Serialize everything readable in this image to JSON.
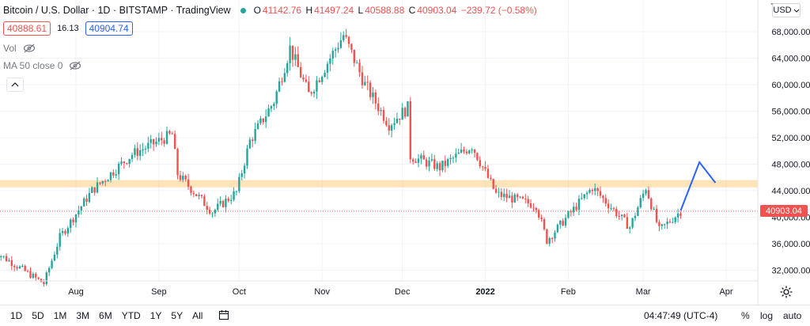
{
  "header": {
    "title": "Bitcoin / U.S. Dollar · 1D · BITSTAMP · TradingView",
    "ohlc": [
      {
        "key": "O",
        "value": "41142.76"
      },
      {
        "key": "H",
        "value": "41497.24"
      },
      {
        "key": "L",
        "value": "40588.88"
      },
      {
        "key": "C",
        "value": "40903.04"
      }
    ],
    "change": "−239.72 (−0.58%)",
    "sell_price": "40888.61",
    "spread": "16.13",
    "buy_price": "40904.74",
    "indicators": [
      "Vol",
      "MA 50 close 0"
    ]
  },
  "currency": "USD",
  "last_price_label": "40903.04",
  "axis_top_partial": "7",
  "toolbar": {
    "ranges": [
      "1D",
      "5D",
      "1M",
      "3M",
      "6M",
      "YTD",
      "1Y",
      "5Y",
      "All"
    ],
    "time": "04:47:49 (UTC-4)",
    "percent": "%",
    "log": "log",
    "auto": "auto"
  },
  "colors": {
    "up": "#26a69a",
    "down": "#ef5350",
    "zone": "#ffcc80",
    "projection": "#2962ff"
  },
  "chart_data": {
    "type": "candlestick",
    "title": "Bitcoin / U.S. Dollar · 1D · BITSTAMP",
    "x_labels": [
      "Aug",
      "Sep",
      "Oct",
      "Nov",
      "Dec",
      "2022",
      "Feb",
      "Mar",
      "Apr"
    ],
    "y_ticks": [
      32000,
      36000,
      40000,
      44000,
      48000,
      52000,
      56000,
      60000,
      64000,
      68000
    ],
    "ylim": [
      30500,
      71200
    ],
    "resistance_zone": [
      44500,
      45600
    ],
    "last_price": 40903.04,
    "projection": [
      {
        "date": "2022-03-15",
        "price": 41000
      },
      {
        "date": "2022-03-22",
        "price": 48300
      },
      {
        "date": "2022-03-28",
        "price": 45200
      }
    ],
    "series_close_path": [
      {
        "date": "2021-07-01",
        "close": 35000
      },
      {
        "date": "2021-07-20",
        "close": 30000
      },
      {
        "date": "2021-07-26",
        "close": 37000
      },
      {
        "date": "2021-08-07",
        "close": 44000
      },
      {
        "date": "2021-08-22",
        "close": 49500
      },
      {
        "date": "2021-09-06",
        "close": 52500
      },
      {
        "date": "2021-09-08",
        "close": 46500
      },
      {
        "date": "2021-09-21",
        "close": 40800
      },
      {
        "date": "2021-09-30",
        "close": 43800
      },
      {
        "date": "2021-10-05",
        "close": 51500
      },
      {
        "date": "2021-10-14",
        "close": 57500
      },
      {
        "date": "2021-10-20",
        "close": 65500
      },
      {
        "date": "2021-10-27",
        "close": 58500
      },
      {
        "date": "2021-11-09",
        "close": 67500
      },
      {
        "date": "2021-11-17",
        "close": 60000
      },
      {
        "date": "2021-11-26",
        "close": 54000
      },
      {
        "date": "2021-12-03",
        "close": 56500
      },
      {
        "date": "2021-12-04",
        "close": 49200
      },
      {
        "date": "2021-12-15",
        "close": 47500
      },
      {
        "date": "2021-12-27",
        "close": 50800
      },
      {
        "date": "2022-01-05",
        "close": 43500
      },
      {
        "date": "2022-01-20",
        "close": 41800
      },
      {
        "date": "2022-01-24",
        "close": 36500
      },
      {
        "date": "2022-02-10",
        "close": 44500
      },
      {
        "date": "2022-02-24",
        "close": 38500
      },
      {
        "date": "2022-03-02",
        "close": 44500
      },
      {
        "date": "2022-03-07",
        "close": 38000
      },
      {
        "date": "2022-03-15",
        "close": 40903
      }
    ]
  }
}
